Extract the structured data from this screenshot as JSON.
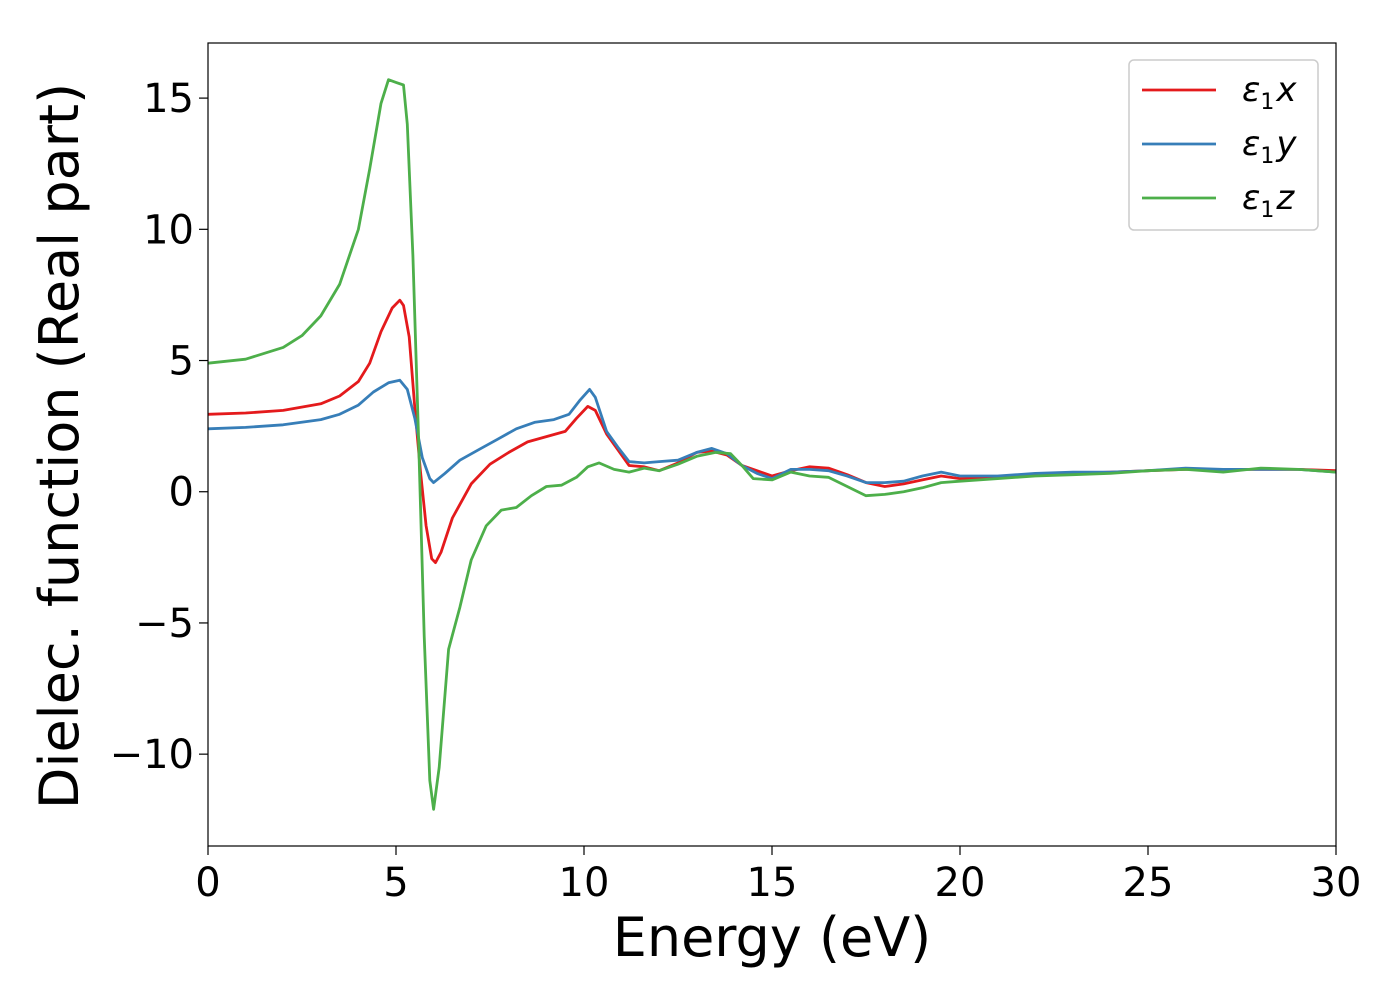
{
  "chart_data": {
    "type": "line",
    "xlabel": "Energy (eV)",
    "ylabel": "Dielec. function (Real part)",
    "xlim": [
      0,
      30
    ],
    "ylim": [
      -13.5,
      17.1
    ],
    "x_ticks": [
      0,
      5,
      10,
      15,
      20,
      25,
      30
    ],
    "x_tick_labels": [
      "0",
      "5",
      "10",
      "15",
      "20",
      "25",
      "30"
    ],
    "y_ticks": [
      -10,
      -5,
      0,
      5,
      10,
      15
    ],
    "y_tick_labels": [
      "−10",
      "−5",
      "0",
      "5",
      "10",
      "15"
    ],
    "grid": false,
    "legend_position": "top-right",
    "series": [
      {
        "name": "ε1x",
        "legend_base": "ε",
        "legend_sub": "1",
        "legend_var": "x",
        "color": "#e41a1c",
        "points": [
          [
            0,
            2.95
          ],
          [
            1,
            3.0
          ],
          [
            2,
            3.1
          ],
          [
            3,
            3.35
          ],
          [
            3.5,
            3.65
          ],
          [
            4,
            4.2
          ],
          [
            4.3,
            4.9
          ],
          [
            4.6,
            6.1
          ],
          [
            4.9,
            7.0
          ],
          [
            5.1,
            7.3
          ],
          [
            5.2,
            7.1
          ],
          [
            5.35,
            5.9
          ],
          [
            5.5,
            3.2
          ],
          [
            5.65,
            0.8
          ],
          [
            5.8,
            -1.3
          ],
          [
            5.95,
            -2.55
          ],
          [
            6.05,
            -2.7
          ],
          [
            6.2,
            -2.3
          ],
          [
            6.5,
            -1.0
          ],
          [
            7.0,
            0.3
          ],
          [
            7.5,
            1.05
          ],
          [
            8.0,
            1.5
          ],
          [
            8.5,
            1.9
          ],
          [
            9.0,
            2.1
          ],
          [
            9.5,
            2.3
          ],
          [
            9.8,
            2.8
          ],
          [
            10.1,
            3.25
          ],
          [
            10.3,
            3.1
          ],
          [
            10.6,
            2.2
          ],
          [
            10.9,
            1.6
          ],
          [
            11.2,
            1.0
          ],
          [
            11.6,
            0.95
          ],
          [
            12.0,
            0.8
          ],
          [
            12.5,
            1.1
          ],
          [
            13.0,
            1.5
          ],
          [
            13.4,
            1.55
          ],
          [
            13.8,
            1.4
          ],
          [
            14.2,
            1.0
          ],
          [
            14.6,
            0.8
          ],
          [
            15.0,
            0.6
          ],
          [
            15.5,
            0.8
          ],
          [
            16.0,
            0.95
          ],
          [
            16.5,
            0.9
          ],
          [
            17.0,
            0.65
          ],
          [
            17.5,
            0.35
          ],
          [
            18.0,
            0.2
          ],
          [
            18.5,
            0.3
          ],
          [
            19.0,
            0.45
          ],
          [
            19.5,
            0.6
          ],
          [
            20.0,
            0.5
          ],
          [
            21.0,
            0.55
          ],
          [
            22.0,
            0.65
          ],
          [
            23.0,
            0.7
          ],
          [
            24.0,
            0.75
          ],
          [
            25.0,
            0.8
          ],
          [
            26.0,
            0.85
          ],
          [
            27.0,
            0.85
          ],
          [
            28.0,
            0.85
          ],
          [
            29.0,
            0.85
          ],
          [
            30.0,
            0.8
          ]
        ]
      },
      {
        "name": "ε1y",
        "legend_base": "ε",
        "legend_sub": "1",
        "legend_var": "y",
        "color": "#377eb8",
        "points": [
          [
            0,
            2.4
          ],
          [
            1,
            2.45
          ],
          [
            2,
            2.55
          ],
          [
            3,
            2.75
          ],
          [
            3.5,
            2.95
          ],
          [
            4,
            3.3
          ],
          [
            4.4,
            3.8
          ],
          [
            4.8,
            4.15
          ],
          [
            5.1,
            4.25
          ],
          [
            5.3,
            3.9
          ],
          [
            5.5,
            2.8
          ],
          [
            5.7,
            1.3
          ],
          [
            5.9,
            0.5
          ],
          [
            6.0,
            0.35
          ],
          [
            6.3,
            0.7
          ],
          [
            6.7,
            1.2
          ],
          [
            7.2,
            1.6
          ],
          [
            7.7,
            2.0
          ],
          [
            8.2,
            2.4
          ],
          [
            8.7,
            2.65
          ],
          [
            9.2,
            2.75
          ],
          [
            9.6,
            2.95
          ],
          [
            9.9,
            3.5
          ],
          [
            10.15,
            3.9
          ],
          [
            10.3,
            3.6
          ],
          [
            10.6,
            2.3
          ],
          [
            10.9,
            1.7
          ],
          [
            11.2,
            1.15
          ],
          [
            11.6,
            1.1
          ],
          [
            12.0,
            1.15
          ],
          [
            12.5,
            1.2
          ],
          [
            13.0,
            1.5
          ],
          [
            13.4,
            1.65
          ],
          [
            13.8,
            1.45
          ],
          [
            14.2,
            1.0
          ],
          [
            14.6,
            0.7
          ],
          [
            15.0,
            0.5
          ],
          [
            15.5,
            0.85
          ],
          [
            16.0,
            0.85
          ],
          [
            16.5,
            0.8
          ],
          [
            17.0,
            0.6
          ],
          [
            17.5,
            0.35
          ],
          [
            18.0,
            0.35
          ],
          [
            18.5,
            0.4
          ],
          [
            19.0,
            0.6
          ],
          [
            19.5,
            0.75
          ],
          [
            20.0,
            0.6
          ],
          [
            21.0,
            0.6
          ],
          [
            22.0,
            0.7
          ],
          [
            23.0,
            0.75
          ],
          [
            24.0,
            0.75
          ],
          [
            25.0,
            0.8
          ],
          [
            26.0,
            0.9
          ],
          [
            27.0,
            0.85
          ],
          [
            28.0,
            0.85
          ],
          [
            29.0,
            0.85
          ],
          [
            30.0,
            0.75
          ]
        ]
      },
      {
        "name": "ε1z",
        "legend_base": "ε",
        "legend_sub": "1",
        "legend_var": "z",
        "color": "#4daf4a",
        "points": [
          [
            0,
            4.9
          ],
          [
            1,
            5.05
          ],
          [
            2,
            5.5
          ],
          [
            2.5,
            5.95
          ],
          [
            3,
            6.7
          ],
          [
            3.5,
            7.9
          ],
          [
            4.0,
            10.0
          ],
          [
            4.3,
            12.3
          ],
          [
            4.6,
            14.8
          ],
          [
            4.8,
            15.7
          ],
          [
            5.0,
            15.6
          ],
          [
            5.2,
            15.5
          ],
          [
            5.3,
            14.0
          ],
          [
            5.45,
            9.0
          ],
          [
            5.6,
            2.0
          ],
          [
            5.75,
            -5.5
          ],
          [
            5.9,
            -11.0
          ],
          [
            6.0,
            -12.1
          ],
          [
            6.15,
            -10.5
          ],
          [
            6.4,
            -6.0
          ],
          [
            6.7,
            -4.4
          ],
          [
            7.0,
            -2.6
          ],
          [
            7.4,
            -1.3
          ],
          [
            7.8,
            -0.7
          ],
          [
            8.2,
            -0.6
          ],
          [
            8.6,
            -0.15
          ],
          [
            9.0,
            0.2
          ],
          [
            9.4,
            0.25
          ],
          [
            9.8,
            0.55
          ],
          [
            10.1,
            0.95
          ],
          [
            10.4,
            1.1
          ],
          [
            10.8,
            0.85
          ],
          [
            11.2,
            0.75
          ],
          [
            11.6,
            0.9
          ],
          [
            12.0,
            0.8
          ],
          [
            12.5,
            1.05
          ],
          [
            13.0,
            1.35
          ],
          [
            13.5,
            1.5
          ],
          [
            13.9,
            1.45
          ],
          [
            14.2,
            1.0
          ],
          [
            14.5,
            0.5
          ],
          [
            15.0,
            0.45
          ],
          [
            15.5,
            0.75
          ],
          [
            16.0,
            0.6
          ],
          [
            16.5,
            0.55
          ],
          [
            17.0,
            0.2
          ],
          [
            17.5,
            -0.15
          ],
          [
            18.0,
            -0.1
          ],
          [
            18.5,
            0.0
          ],
          [
            19.0,
            0.15
          ],
          [
            19.5,
            0.35
          ],
          [
            20.0,
            0.4
          ],
          [
            21.0,
            0.5
          ],
          [
            22.0,
            0.6
          ],
          [
            23.0,
            0.65
          ],
          [
            24.0,
            0.7
          ],
          [
            25.0,
            0.8
          ],
          [
            26.0,
            0.85
          ],
          [
            27.0,
            0.75
          ],
          [
            28.0,
            0.9
          ],
          [
            29.0,
            0.85
          ],
          [
            30.0,
            0.75
          ]
        ]
      }
    ]
  }
}
